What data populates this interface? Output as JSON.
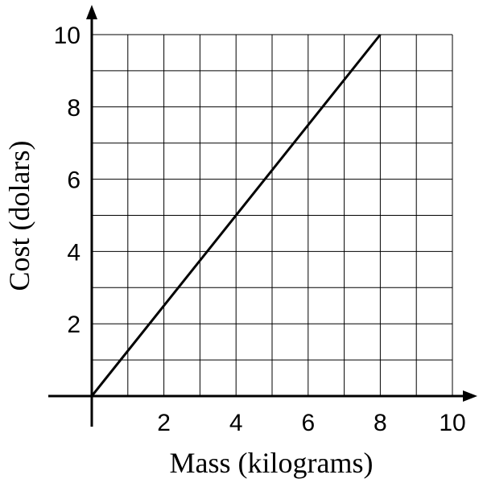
{
  "chart_data": {
    "type": "line",
    "xlabel": "Mass (kilograms)",
    "ylabel": "Cost (dolars)",
    "xlim": [
      0,
      10
    ],
    "ylim": [
      0,
      10
    ],
    "grid": true,
    "grid_step": 1,
    "x_ticks": [
      2,
      4,
      6,
      8,
      10
    ],
    "y_ticks": [
      2,
      4,
      6,
      8,
      10
    ],
    "series": [
      {
        "x": [
          0,
          8
        ],
        "y": [
          0,
          10
        ],
        "color": "#000000"
      }
    ]
  }
}
